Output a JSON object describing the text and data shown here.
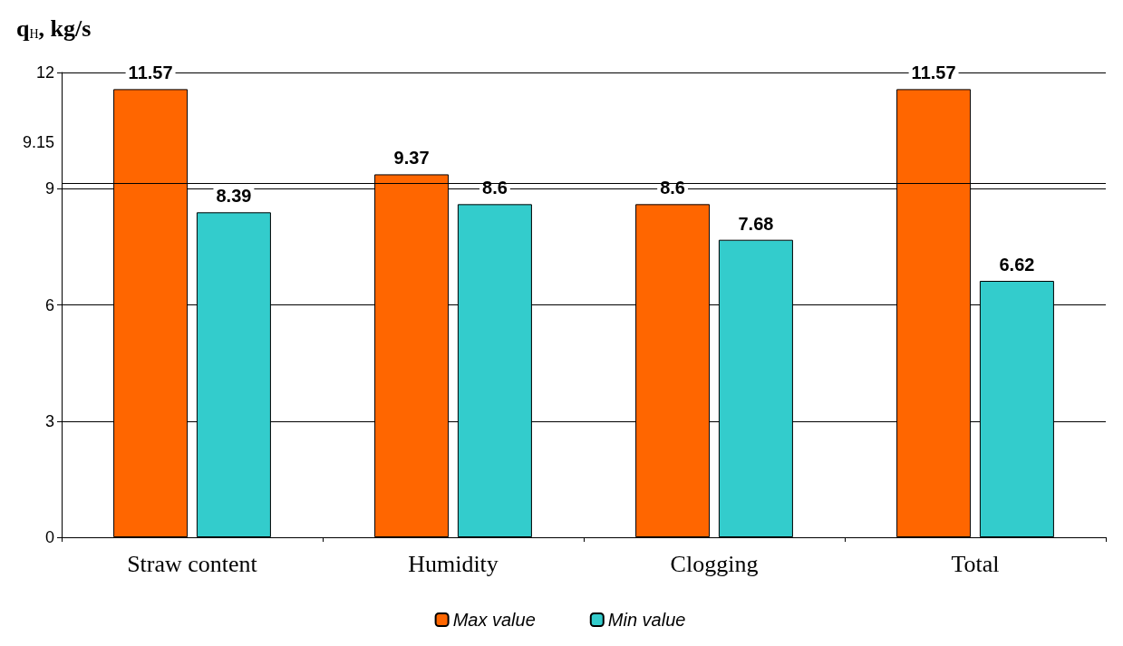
{
  "chart_data": {
    "type": "bar",
    "ylabel": "q$_{H}$, kg/s",
    "categories": [
      "Straw content",
      "Humidity",
      "Clogging",
      "Total"
    ],
    "series": [
      {
        "name": "Max value",
        "color": "#ff6600",
        "values": [
          11.57,
          9.37,
          8.6,
          11.57
        ]
      },
      {
        "name": "Min value",
        "color": "#33cccc",
        "values": [
          8.39,
          8.6,
          7.68,
          6.62
        ]
      }
    ],
    "ylim": [
      0,
      12
    ],
    "yticks": [
      0,
      3,
      6,
      9,
      12
    ],
    "grid": "y",
    "legend": "bottom",
    "data_labels": true,
    "ref_lines": [
      {
        "axis": "y",
        "value": 9.15,
        "label": "9.15"
      }
    ]
  }
}
